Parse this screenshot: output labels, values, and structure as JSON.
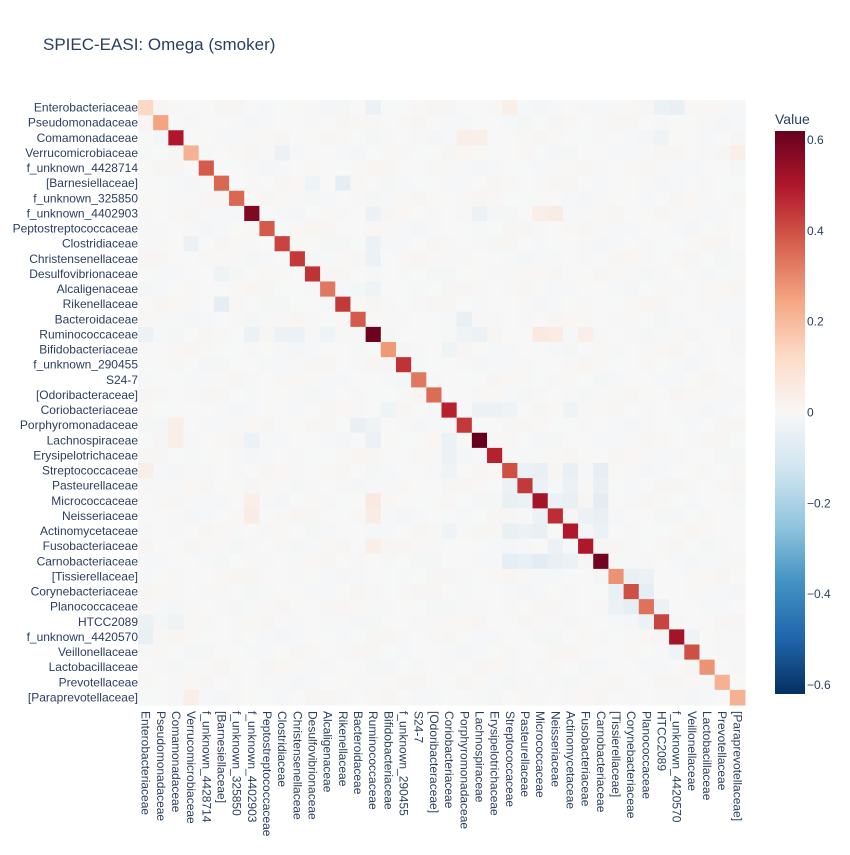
{
  "chart_data": {
    "type": "heatmap",
    "title": "SPIEC-EASI: Omega (smoker)",
    "colorbar": {
      "title": "Value",
      "zmin": -0.62,
      "zmax": 0.62,
      "ticks": [
        0.6,
        0.4,
        0.2,
        0,
        -0.2,
        -0.4,
        -0.6
      ],
      "tick_labels": [
        "0.6",
        "0.4",
        "0.2",
        "0",
        "−0.2",
        "−0.4",
        "−0.6"
      ],
      "colorscale": [
        "#053061",
        "#2166ac",
        "#4393c3",
        "#92c5de",
        "#d1e5f0",
        "#f7f7f7",
        "#fddbc7",
        "#f4a582",
        "#d6604d",
        "#b2182b",
        "#67001f"
      ]
    },
    "labels": [
      "Enterobacteriaceae",
      "Pseudomonadaceae",
      "Comamonadaceae",
      "Verrucomicrobiaceae",
      "f_unknown_4428714",
      "[Barnesiellaceae]",
      "f_unknown_325850",
      "f_unknown_4402903",
      "Peptostreptococcaceae",
      "Clostridiaceae",
      "Christensenellaceae",
      "Desulfovibrionaceae",
      "Alcaligenaceae",
      "Rikenellaceae",
      "Bacteroidaceae",
      "Ruminococcaceae",
      "Bifidobacteriaceae",
      "f_unknown_290455",
      "S24-7",
      "[Odoribacteraceae]",
      "Coriobacteriaceae",
      "Porphyromonadaceae",
      "Lachnospiraceae",
      "Erysipelotrichaceae",
      "Streptococcaceae",
      "Pasteurellaceae",
      "Micrococcaceae",
      "Neisseriaceae",
      "Actinomycetaceae",
      "Fusobacteriaceae",
      "Carnobacteriaceae",
      "[Tissierellaceae]",
      "Corynebacteriaceae",
      "Planococcaceae",
      "HTCC2089",
      "f_unknown_4420570",
      "Veillonellaceae",
      "Lactobacillaceae",
      "Prevotellaceae",
      "[Paraprevotellaceae]"
    ],
    "diagonal": [
      0.13,
      0.25,
      0.5,
      0.22,
      0.38,
      0.36,
      0.36,
      0.58,
      0.38,
      0.42,
      0.44,
      0.45,
      0.33,
      0.44,
      0.38,
      0.61,
      0.27,
      0.45,
      0.33,
      0.35,
      0.48,
      0.44,
      0.62,
      0.48,
      0.4,
      0.44,
      0.52,
      0.46,
      0.5,
      0.5,
      0.6,
      0.28,
      0.4,
      0.34,
      0.42,
      0.52,
      0.4,
      0.28,
      0.22,
      0.22
    ],
    "off_diagonal": [
      [
        0,
        15,
        -0.04
      ],
      [
        0,
        24,
        0.04
      ],
      [
        0,
        34,
        -0.04
      ],
      [
        0,
        35,
        -0.05
      ],
      [
        2,
        21,
        0.04
      ],
      [
        2,
        22,
        0.04
      ],
      [
        3,
        9,
        -0.04
      ],
      [
        3,
        39,
        0.04
      ],
      [
        5,
        13,
        -0.06
      ],
      [
        5,
        11,
        -0.03
      ],
      [
        7,
        15,
        -0.04
      ],
      [
        7,
        22,
        -0.04
      ],
      [
        7,
        26,
        0.04
      ],
      [
        7,
        27,
        0.05
      ],
      [
        9,
        3,
        -0.04
      ],
      [
        9,
        15,
        -0.04
      ],
      [
        12,
        15,
        -0.03
      ],
      [
        13,
        5,
        -0.06
      ],
      [
        14,
        21,
        -0.05
      ],
      [
        15,
        7,
        -0.04
      ],
      [
        15,
        9,
        -0.04
      ],
      [
        15,
        10,
        -0.04
      ],
      [
        15,
        12,
        -0.03
      ],
      [
        15,
        21,
        -0.03
      ],
      [
        15,
        22,
        -0.04
      ],
      [
        15,
        26,
        0.06
      ],
      [
        15,
        27,
        0.05
      ],
      [
        15,
        29,
        0.04
      ],
      [
        16,
        20,
        -0.03
      ],
      [
        20,
        22,
        -0.04
      ],
      [
        20,
        23,
        -0.04
      ],
      [
        20,
        24,
        -0.03
      ],
      [
        20,
        28,
        -0.03
      ],
      [
        21,
        14,
        -0.05
      ],
      [
        22,
        15,
        -0.04
      ],
      [
        22,
        20,
        -0.04
      ],
      [
        24,
        25,
        -0.04
      ],
      [
        24,
        26,
        -0.05
      ],
      [
        24,
        28,
        -0.05
      ],
      [
        24,
        30,
        -0.06
      ],
      [
        25,
        26,
        -0.04
      ],
      [
        25,
        28,
        -0.04
      ],
      [
        25,
        30,
        -0.05
      ],
      [
        26,
        15,
        0.06
      ],
      [
        26,
        24,
        -0.05
      ],
      [
        26,
        28,
        -0.05
      ],
      [
        26,
        30,
        -0.07
      ],
      [
        27,
        15,
        0.05
      ],
      [
        27,
        26,
        -0.04
      ],
      [
        27,
        29,
        -0.04
      ],
      [
        27,
        30,
        -0.05
      ],
      [
        28,
        24,
        -0.05
      ],
      [
        28,
        26,
        -0.05
      ],
      [
        28,
        30,
        -0.04
      ],
      [
        30,
        24,
        -0.06
      ],
      [
        30,
        25,
        -0.05
      ],
      [
        30,
        26,
        -0.07
      ],
      [
        30,
        27,
        -0.05
      ],
      [
        31,
        32,
        -0.05
      ],
      [
        32,
        33,
        -0.06
      ],
      [
        33,
        31,
        -0.04
      ],
      [
        33,
        34,
        -0.04
      ],
      [
        34,
        33,
        -0.04
      ],
      [
        35,
        36,
        -0.03
      ],
      [
        36,
        35,
        -0.03
      ],
      [
        32,
        31,
        -0.05
      ],
      [
        33,
        32,
        -0.06
      ],
      [
        34,
        2,
        -0.03
      ]
    ]
  }
}
